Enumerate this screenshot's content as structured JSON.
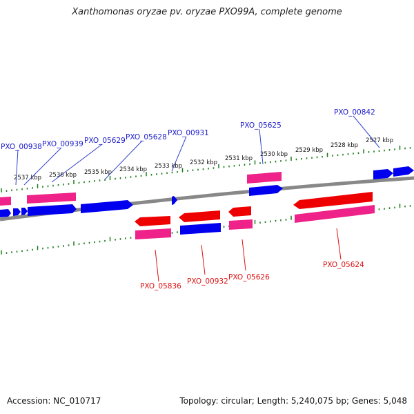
{
  "title": "Xanthomonas oryzae pv. oryzae PXO99A, complete genome",
  "footer": {
    "accession": "Accession: NC_010717",
    "topology": "Topology: circular; Length: 5,240,075 bp; Genes: 5,048"
  },
  "colors": {
    "backbone": "#888888",
    "tick": "#1a7a1a",
    "forward_cds": "#0000ee",
    "forward_gene": "#ee2288",
    "reverse_cds": "#ee0000",
    "reverse_gene": "#ee2288",
    "forward_label": "#1a1acc",
    "reverse_label": "#dd1111"
  },
  "scale_labels": [
    "2537 kbp",
    "2536 kbp",
    "2535 kbp",
    "2534 kbp",
    "2533 kbp",
    "2532 kbp",
    "2531 kbp",
    "2530 kbp",
    "2529 kbp",
    "2528 kbp",
    "2527 kbp"
  ],
  "forward_gene_labels": [
    "PXO_00938",
    "PXO_00939",
    "PXO_05629",
    "PXO_05628",
    "PXO_00931",
    "PXO_05625",
    "PXO_00842"
  ],
  "reverse_gene_labels": [
    "PXO_05836",
    "PXO_00932",
    "PXO_05626",
    "PXO_05624"
  ]
}
